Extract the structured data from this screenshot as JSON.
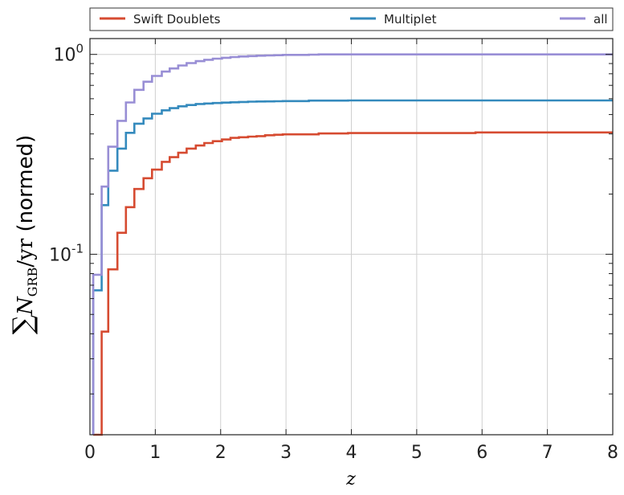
{
  "chart_data": {
    "type": "line",
    "step": true,
    "title": "",
    "xlabel": "z",
    "ylabel": "∑N_GRB/yr (normed)",
    "ylabel_parts": {
      "sum": "∑",
      "n": "N",
      "sub": "GRB",
      "per": "/yr",
      "rest": " (normed)"
    },
    "xlim": [
      0,
      8
    ],
    "ylim": [
      0.0125,
      1.2
    ],
    "yscale": "log",
    "grid": true,
    "legend_position": "top, outside plot",
    "x_ticks": [
      {
        "value": 0,
        "label": "0"
      },
      {
        "value": 1,
        "label": "1"
      },
      {
        "value": 2,
        "label": "2"
      },
      {
        "value": 3,
        "label": "3"
      },
      {
        "value": 4,
        "label": "4"
      },
      {
        "value": 5,
        "label": "5"
      },
      {
        "value": 6,
        "label": "6"
      },
      {
        "value": 7,
        "label": "7"
      },
      {
        "value": 8,
        "label": "8"
      }
    ],
    "y_ticks": [
      {
        "value": 0.1,
        "base": "10",
        "exponent": "-1"
      },
      {
        "value": 1,
        "base": "10",
        "exponent": "0"
      }
    ],
    "x": [
      0.05,
      0.18,
      0.28,
      0.42,
      0.55,
      0.68,
      0.82,
      0.95,
      1.1,
      1.22,
      1.35,
      1.48,
      1.62,
      1.75,
      1.88,
      2.02,
      2.15,
      2.28,
      2.42,
      2.55,
      2.68,
      2.82,
      2.95,
      3.35,
      3.5,
      3.95,
      5.9,
      8.0
    ],
    "series": [
      {
        "name": "Swift Doublets",
        "color": "#d64b31",
        "values": [
          0.0125,
          0.041,
          0.084,
          0.128,
          0.172,
          0.212,
          0.24,
          0.265,
          0.29,
          0.306,
          0.322,
          0.338,
          0.35,
          0.36,
          0.368,
          0.375,
          0.382,
          0.385,
          0.388,
          0.39,
          0.394,
          0.396,
          0.398,
          0.398,
          0.402,
          0.404,
          0.407,
          0.407
        ]
      },
      {
        "name": "Multiplet",
        "color": "#348abd",
        "values": [
          0.066,
          0.176,
          0.262,
          0.338,
          0.405,
          0.45,
          0.478,
          0.505,
          0.525,
          0.538,
          0.55,
          0.558,
          0.565,
          0.568,
          0.571,
          0.574,
          0.576,
          0.578,
          0.58,
          0.581,
          0.582,
          0.583,
          0.584,
          0.587,
          0.587,
          0.588,
          0.588,
          0.588
        ]
      },
      {
        "name": "all",
        "color": "#988ed5",
        "values": [
          0.079,
          0.218,
          0.345,
          0.465,
          0.575,
          0.665,
          0.73,
          0.78,
          0.82,
          0.85,
          0.88,
          0.905,
          0.925,
          0.94,
          0.952,
          0.962,
          0.97,
          0.976,
          0.981,
          0.985,
          0.988,
          0.991,
          0.994,
          0.997,
          1.0,
          1.0,
          1.0,
          1.0
        ]
      }
    ]
  }
}
